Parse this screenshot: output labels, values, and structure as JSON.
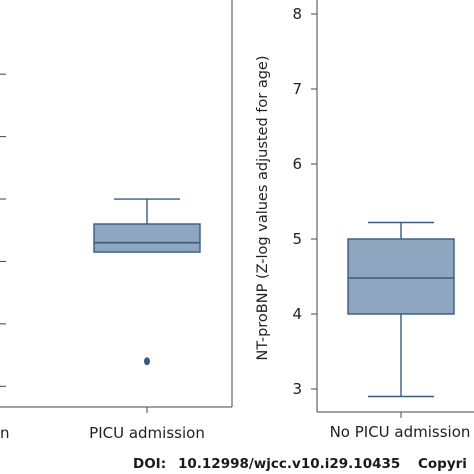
{
  "chart_data": [
    {
      "type": "box",
      "title": "",
      "ylabel": "",
      "categories": [
        "PICU admission"
      ],
      "partial_left_label": "n",
      "ylim": [
        -2.3,
        3.9
      ],
      "boxes": [
        {
          "category": "PICU admission",
          "whisker_low": 0.15,
          "q1": 0.15,
          "median": 0.3,
          "q3": 0.6,
          "whisker_high": 1.0,
          "outliers": [
            -1.6
          ]
        }
      ],
      "box_color": "#8fa6c1",
      "line_color": "#3a5a80"
    },
    {
      "type": "box",
      "title": "",
      "ylabel": "NT-proBNP (Z-log values adjusted for age)",
      "categories": [
        "No PICU admission"
      ],
      "ylim": [
        2.7,
        8.1
      ],
      "yticks": [
        3,
        4,
        5,
        6,
        7,
        8
      ],
      "boxes": [
        {
          "category": "No PICU admission",
          "whisker_low": 2.9,
          "q1": 4.0,
          "median": 4.48,
          "q3": 5.0,
          "whisker_high": 5.22,
          "outliers": []
        }
      ],
      "box_color": "#8fa6c1",
      "line_color": "#3a5a80"
    }
  ],
  "footer": {
    "doi_label": "DOI:",
    "doi_value": "10.12998/wjcc.v10.i29.10435",
    "copyright": "Copyri"
  }
}
